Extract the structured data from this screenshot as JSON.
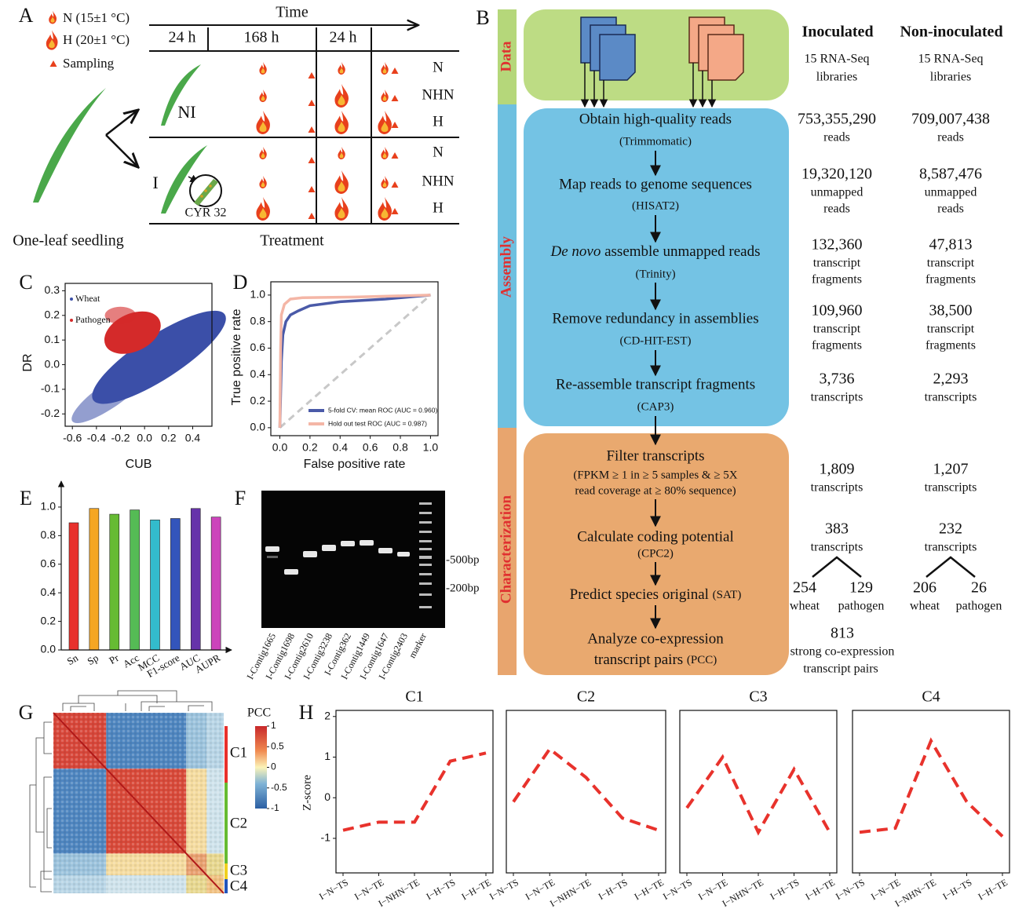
{
  "letters": [
    "A",
    "B",
    "C",
    "D",
    "E",
    "F",
    "G",
    "H"
  ],
  "panel_a": {
    "legend": [
      "N (15±1 °C)",
      "H (20±1 °C)",
      "Sampling"
    ],
    "time": "Time",
    "periods": [
      "24 h",
      "168 h",
      "24 h"
    ],
    "rows_ni": [
      "N",
      "NHN",
      "H"
    ],
    "rows_i": [
      "N",
      "NHN",
      "H"
    ],
    "group_ni": "NI",
    "group_i": "I",
    "strain": "CYR 32",
    "seedling": "One-leaf seedling",
    "treatment": "Treatment"
  },
  "panel_b": {
    "stages": [
      "Data",
      "Assembly",
      "Characterization"
    ],
    "columns": [
      "Inoculated",
      "Non-inoculated"
    ],
    "steps": [
      {
        "title": "Obtain high-quality reads",
        "tool": "(Trimmomatic)"
      },
      {
        "title": "Map reads to genome sequences",
        "tool": "(HISAT2)"
      },
      {
        "italic": "De novo",
        "title": "assemble unmapped reads",
        "tool": "(Trinity)"
      },
      {
        "title": "Remove redundancy in assemblies",
        "tool": "(CD-HIT-EST)"
      },
      {
        "title": "Re-assemble transcript fragments",
        "tool": "(CAP3)"
      },
      {
        "title": "Filter transcripts",
        "tool": [
          "(FPKM ≥ 1 in ≥ 5 samples & ≥ 5X",
          "read coverage at ≥ 80% sequence)"
        ]
      },
      {
        "title": "Calculate coding potential",
        "tool": "(CPC2)"
      },
      {
        "title": "Predict species original",
        "tool": "(SAT)"
      },
      {
        "title": [
          "Analyze co-expression",
          "transcript pairs"
        ],
        "tool": "(PCC)"
      }
    ],
    "inoculated": [
      [
        "15 RNA-Seq",
        "libraries"
      ],
      [
        "753,355,290",
        "reads"
      ],
      [
        "19,320,120",
        "unmapped",
        "reads"
      ],
      [
        "132,360",
        "transcript",
        "fragments"
      ],
      [
        "109,960",
        "transcript",
        "fragments"
      ],
      [
        "3,736",
        "transcripts"
      ],
      [
        "1,809",
        "transcripts"
      ],
      [
        "383",
        "transcripts"
      ]
    ],
    "non_inoculated": [
      [
        "15 RNA-Seq",
        "libraries"
      ],
      [
        "709,007,438",
        "reads"
      ],
      [
        "8,587,476",
        "unmapped",
        "reads"
      ],
      [
        "47,813",
        "transcript",
        "fragments"
      ],
      [
        "38,500",
        "transcript",
        "fragments"
      ],
      [
        "2,293",
        "transcripts"
      ],
      [
        "1,207",
        "transcripts"
      ],
      [
        "232",
        "transcripts"
      ]
    ],
    "inoculated_split": [
      [
        "254",
        "wheat"
      ],
      [
        "129",
        "pathogen"
      ]
    ],
    "non_inoculated_split": [
      [
        "206",
        "wheat"
      ],
      [
        "26",
        "pathogen"
      ]
    ],
    "co_expression": [
      "813",
      "strong co-expression",
      "transcript pairs"
    ]
  },
  "panel_f": {
    "lanes": [
      "I-Contig1665",
      "I-Contig1698",
      "I-Contig2610",
      "I-Contig3238",
      "I-Contig362",
      "I-Contig1449",
      "I-Contig1647",
      "I-Contig2403",
      "marker"
    ],
    "markers": [
      "-500bp",
      "-200bp"
    ]
  },
  "panel_g": {
    "colorbar_label": "PCC",
    "colorbar_ticks": [
      1,
      0.5,
      0,
      -0.5,
      -1
    ],
    "clusters": [
      "C1",
      "C2",
      "C3",
      "C4"
    ]
  },
  "chart_data": [
    {
      "type": "scatter",
      "xlabel": "CUB",
      "ylabel": "DR",
      "xlim": [
        -0.66,
        0.56
      ],
      "ylim": [
        -0.25,
        0.33
      ],
      "xticks": [
        -0.6,
        -0.4,
        -0.2,
        {
          "value": 0,
          "label": "0.0"
        },
        0.2,
        0.4
      ],
      "yticks": [
        -0.2,
        -0.1,
        {
          "value": 0,
          "label": "0.0"
        },
        0.1,
        0.2,
        0.3
      ],
      "series": [
        {
          "name": "Wheat",
          "color": "#3b4fa8"
        },
        {
          "name": "Pathogen",
          "color": "#d42a2a"
        }
      ]
    },
    {
      "type": "line",
      "xlabel": "False positive rate",
      "ylabel": "True positive rate",
      "xlim": [
        -0.06,
        1.05
      ],
      "ylim": [
        -0.06,
        1.1
      ],
      "xticks": [
        {
          "value": 0,
          "label": "0.0"
        },
        0.2,
        0.4,
        0.6,
        0.8,
        {
          "value": 1,
          "label": "1.0"
        }
      ],
      "yticks": [
        {
          "value": 0,
          "label": "0.0"
        },
        0.2,
        0.4,
        0.6,
        0.8,
        {
          "value": 1,
          "label": "1.0"
        }
      ],
      "series": [
        {
          "name": "5-fold CV: mean ROC (AUC = 0.960)",
          "color": "#4a5aa8",
          "x": [
            0,
            0.01,
            0.02,
            0.04,
            0.07,
            0.12,
            0.2,
            0.4,
            0.7,
            1
          ],
          "values": [
            0,
            0.5,
            0.7,
            0.8,
            0.85,
            0.88,
            0.92,
            0.95,
            0.97,
            1
          ]
        },
        {
          "name": "Hold out test ROC (AUC = 0.987)",
          "color": "#f4b6a6",
          "x": [
            0,
            0.005,
            0.01,
            0.03,
            0.07,
            0.15,
            0.5,
            1
          ],
          "values": [
            0,
            0.6,
            0.85,
            0.93,
            0.97,
            0.98,
            0.985,
            1
          ]
        }
      ]
    },
    {
      "type": "bar",
      "categories": [
        "Sn",
        "Sp",
        "Pr",
        "Acc",
        "MCC",
        "F1-score",
        "AUC",
        "AUPR"
      ],
      "values": [
        0.89,
        0.99,
        0.95,
        0.98,
        0.91,
        0.92,
        0.99,
        0.93
      ],
      "colors": [
        "#e8302c",
        "#f5a623",
        "#66bb33",
        "#55bb55",
        "#33bbcc",
        "#3355bb",
        "#6633aa",
        "#cc44bb"
      ],
      "ylim": [
        0,
        1.17
      ],
      "yticks": [
        {
          "value": 0,
          "label": "0.0"
        },
        0.2,
        0.4,
        0.6,
        0.8,
        {
          "value": 1,
          "label": "1.0"
        }
      ]
    },
    {
      "type": "line",
      "title": "C1",
      "ylabel": "Z-score",
      "categories": [
        "I−N−TS",
        "I−N−TE",
        "I−NHN−TE",
        "I−H−TS",
        "I−H−TE"
      ],
      "ylim": [
        -1.85,
        2.15
      ],
      "yticks": [
        -1,
        0,
        1,
        2
      ],
      "series": [
        {
          "color": "#e8322c",
          "values": [
            -0.8,
            -0.6,
            -0.6,
            0.9,
            1.1
          ]
        }
      ]
    },
    {
      "type": "line",
      "title": "C2",
      "categories": [
        "I−N−TS",
        "I−N−TE",
        "I−NHN−TE",
        "I−H−TS",
        "I−H−TE"
      ],
      "ylim": [
        -1.85,
        2.15
      ],
      "series": [
        {
          "color": "#e8322c",
          "values": [
            -0.1,
            1.2,
            0.5,
            -0.5,
            -0.8
          ]
        }
      ]
    },
    {
      "type": "line",
      "title": "C3",
      "categories": [
        "I−N−TS",
        "I−N−TE",
        "I−NHN−TE",
        "I−H−TS",
        "I−H−TE"
      ],
      "ylim": [
        -1.85,
        2.15
      ],
      "series": [
        {
          "color": "#e8322c",
          "values": [
            -0.25,
            1.0,
            -0.85,
            0.7,
            -0.85
          ]
        }
      ]
    },
    {
      "type": "line",
      "title": "C4",
      "categories": [
        "I−N−TS",
        "I−N−TE",
        "I−NHN−TE",
        "I−H−TS",
        "I−H−TE"
      ],
      "ylim": [
        -1.85,
        2.15
      ],
      "series": [
        {
          "color": "#e8322c",
          "values": [
            -0.85,
            -0.75,
            1.4,
            -0.1,
            -0.95
          ]
        }
      ]
    }
  ]
}
